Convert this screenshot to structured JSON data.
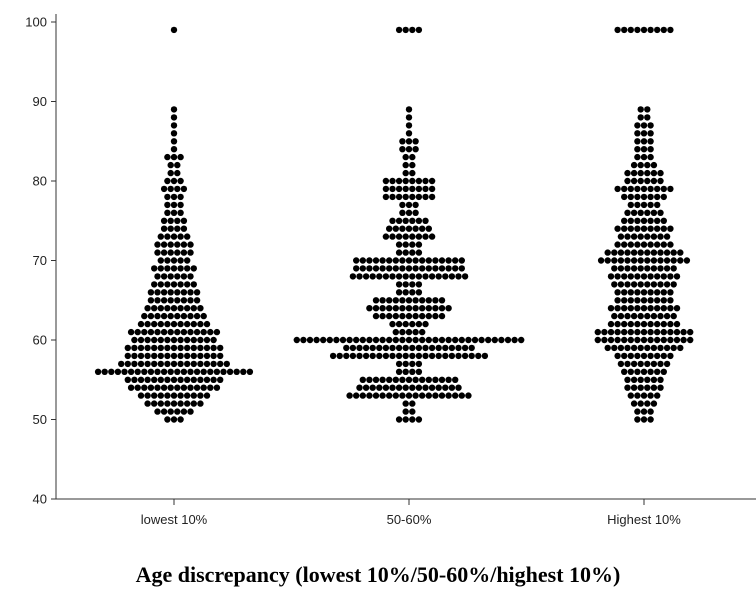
{
  "chart_data": {
    "type": "scatter",
    "subtype": "dot-density / beeswarm",
    "title": "",
    "xlabel": "Age discrepancy (lowest 10%/50-60%/highest 10%)",
    "ylabel": "",
    "ylim": [
      40,
      100
    ],
    "yticks": [
      40,
      50,
      60,
      70,
      80,
      90,
      100
    ],
    "categories": [
      "lowest 10%",
      "50-60%",
      "Highest 10%"
    ],
    "grid": false,
    "marker_color": "#000000",
    "series": [
      {
        "category": "lowest 10%",
        "counts_by_value": {
          "50": 3,
          "51": 6,
          "52": 9,
          "53": 11,
          "54": 14,
          "55": 15,
          "56": 24,
          "57": 17,
          "58": 15,
          "59": 15,
          "60": 13,
          "61": 14,
          "62": 11,
          "63": 10,
          "64": 9,
          "65": 8,
          "66": 8,
          "67": 7,
          "68": 6,
          "69": 7,
          "70": 5,
          "71": 6,
          "72": 6,
          "73": 5,
          "74": 4,
          "75": 4,
          "76": 3,
          "77": 3,
          "78": 3,
          "79": 4,
          "80": 3,
          "81": 2,
          "82": 2,
          "83": 3,
          "84": 1,
          "85": 1,
          "86": 1,
          "87": 1,
          "88": 1,
          "89": 1,
          "99": 1
        }
      },
      {
        "category": "50-60%",
        "counts_by_value": {
          "50": 4,
          "51": 2,
          "52": 2,
          "53": 19,
          "54": 16,
          "55": 15,
          "56": 4,
          "57": 4,
          "58": 24,
          "59": 20,
          "60": 35,
          "61": 5,
          "62": 6,
          "63": 11,
          "64": 13,
          "65": 11,
          "66": 4,
          "67": 4,
          "68": 18,
          "69": 17,
          "70": 17,
          "71": 4,
          "72": 4,
          "73": 8,
          "74": 7,
          "75": 6,
          "76": 3,
          "77": 3,
          "78": 8,
          "79": 8,
          "80": 8,
          "81": 2,
          "82": 2,
          "83": 2,
          "84": 3,
          "85": 3,
          "86": 1,
          "87": 1,
          "88": 1,
          "89": 1,
          "99": 4
        }
      },
      {
        "category": "Highest 10%",
        "counts_by_value": {
          "50": 3,
          "51": 3,
          "52": 4,
          "53": 5,
          "54": 6,
          "55": 6,
          "56": 7,
          "57": 8,
          "58": 9,
          "59": 12,
          "60": 15,
          "61": 15,
          "62": 11,
          "63": 10,
          "64": 11,
          "65": 9,
          "66": 9,
          "67": 10,
          "68": 11,
          "69": 10,
          "70": 14,
          "71": 12,
          "72": 9,
          "73": 8,
          "74": 9,
          "75": 7,
          "76": 6,
          "77": 5,
          "78": 7,
          "79": 9,
          "80": 6,
          "81": 6,
          "82": 4,
          "83": 3,
          "84": 3,
          "85": 3,
          "86": 3,
          "87": 3,
          "88": 2,
          "89": 2,
          "99": 9
        }
      }
    ]
  }
}
